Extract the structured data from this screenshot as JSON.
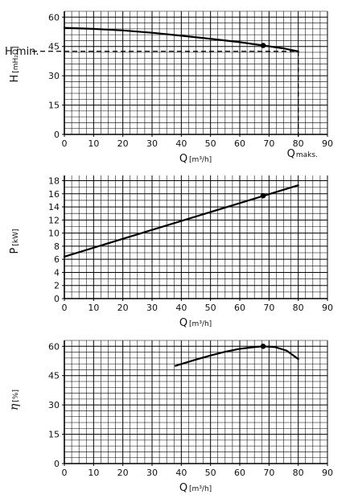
{
  "chart_data": [
    {
      "type": "line",
      "xlabel": "Q",
      "xunit": "[m³/h]",
      "ylabel": "H",
      "yunit": "[mH₂O]",
      "xlim": [
        0,
        90
      ],
      "ylim": [
        0,
        63
      ],
      "xticks": [
        0,
        10,
        20,
        30,
        40,
        50,
        60,
        70,
        80,
        90
      ],
      "yticks": [
        0,
        15,
        30,
        45,
        60
      ],
      "grid": true,
      "series": [
        {
          "x": [
            0,
            10,
            20,
            30,
            40,
            50,
            60,
            68,
            75,
            80
          ],
          "y": [
            54.5,
            54.0,
            53.2,
            52.0,
            50.5,
            48.9,
            47.2,
            45.5,
            44.0,
            42.5
          ]
        }
      ],
      "marker": {
        "x": 68,
        "y": 45.5
      },
      "reference": {
        "h_label": "H min.",
        "h_value": 42.5,
        "q_label": "Q",
        "q_sub": "maks.",
        "q_value": 80
      }
    },
    {
      "type": "line",
      "xlabel": "Q",
      "xunit": "[m³/h]",
      "ylabel": "P",
      "yunit": "[kW]",
      "xlim": [
        0,
        90
      ],
      "ylim": [
        0,
        18.8
      ],
      "xticks": [
        0,
        10,
        20,
        30,
        40,
        50,
        60,
        70,
        80,
        90
      ],
      "yticks": [
        0,
        2,
        4,
        6,
        8,
        10,
        12,
        14,
        16,
        18
      ],
      "grid": true,
      "series": [
        {
          "x": [
            0,
            80
          ],
          "y": [
            6.4,
            17.3
          ]
        }
      ],
      "marker": {
        "x": 68,
        "y": 15.7
      }
    },
    {
      "type": "line",
      "xlabel": "Q",
      "xunit": "[m³/h]",
      "ylabel": "η",
      "yunit": "[%]",
      "xlim": [
        0,
        90
      ],
      "ylim": [
        0,
        63
      ],
      "xticks": [
        0,
        10,
        20,
        30,
        40,
        50,
        60,
        70,
        80,
        90
      ],
      "yticks": [
        0,
        15,
        30,
        45,
        60
      ],
      "grid": true,
      "series": [
        {
          "x": [
            38,
            45,
            50,
            55,
            60,
            65,
            68,
            72,
            76,
            80
          ],
          "y": [
            50.0,
            53.2,
            55.3,
            57.2,
            58.7,
            59.6,
            60.0,
            59.6,
            57.8,
            53.5
          ]
        }
      ],
      "marker": {
        "x": 68,
        "y": 60.0
      }
    }
  ]
}
